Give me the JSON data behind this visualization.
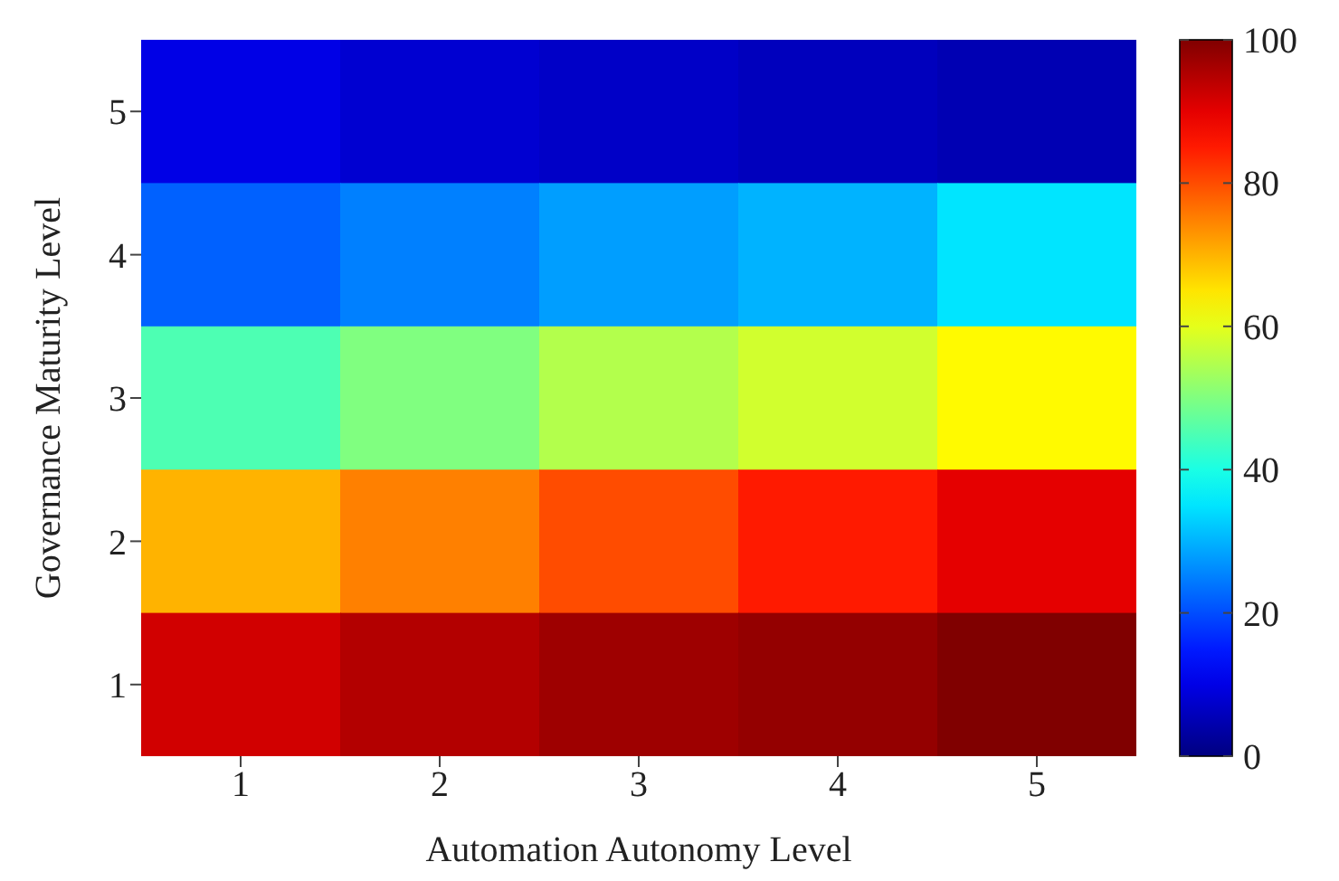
{
  "chart_data": {
    "type": "heatmap",
    "xlabel": "Automation Autonomy Level",
    "ylabel": "Governance Maturity Level",
    "categories": [
      "1",
      "2",
      "3",
      "4",
      "5"
    ],
    "y_categories": [
      "5",
      "4",
      "3",
      "2",
      "1"
    ],
    "cells": [
      [
        10,
        8,
        7,
        6,
        5
      ],
      [
        22,
        25,
        28,
        30,
        35
      ],
      [
        45,
        50,
        55,
        58,
        63
      ],
      [
        70,
        75,
        80,
        85,
        90
      ],
      [
        92,
        95,
        97,
        98,
        100
      ]
    ],
    "clim": [
      0,
      100
    ],
    "cticks": [
      0,
      20,
      40,
      60,
      80,
      100
    ]
  }
}
